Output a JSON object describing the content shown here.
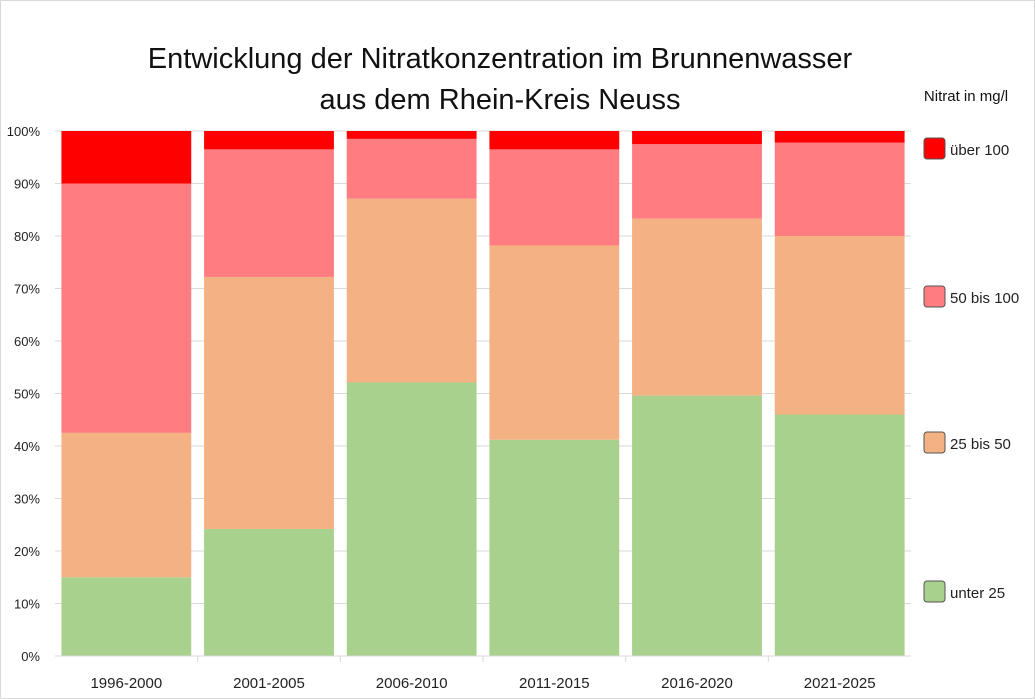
{
  "chart_data": {
    "type": "bar",
    "stacked": true,
    "title": [
      "Entwicklung der Nitratkonzentration im Brunnenwasser",
      "aus dem Rhein-Kreis Neuss"
    ],
    "legend_title": "Nitrat in mg/l",
    "legend_position": "right",
    "categories": [
      "1996-2000",
      "2001-2005",
      "2006-2010",
      "2011-2015",
      "2016-2020",
      "2021-2025"
    ],
    "y_ticks": [
      "0%",
      "10%",
      "20%",
      "30%",
      "40%",
      "50%",
      "60%",
      "70%",
      "80%",
      "90%",
      "100%"
    ],
    "ylim": [
      0,
      100
    ],
    "y_unit": "%",
    "grid": true,
    "series": [
      {
        "name": "unter 25",
        "color": "#a9d18e",
        "values": [
          15.0,
          24.2,
          52.1,
          41.2,
          49.6,
          46.0
        ]
      },
      {
        "name": "25 bis 50",
        "color": "#f4b183",
        "values": [
          27.5,
          48.0,
          35.0,
          37.0,
          33.7,
          34.0
        ]
      },
      {
        "name": "50 bis 100",
        "color": "#ff7c80",
        "values": [
          47.5,
          24.3,
          11.4,
          18.3,
          14.2,
          17.8
        ]
      },
      {
        "name": "über 100",
        "color": "#ff0000",
        "values": [
          10.0,
          3.5,
          1.5,
          3.5,
          2.5,
          2.2
        ]
      }
    ]
  }
}
